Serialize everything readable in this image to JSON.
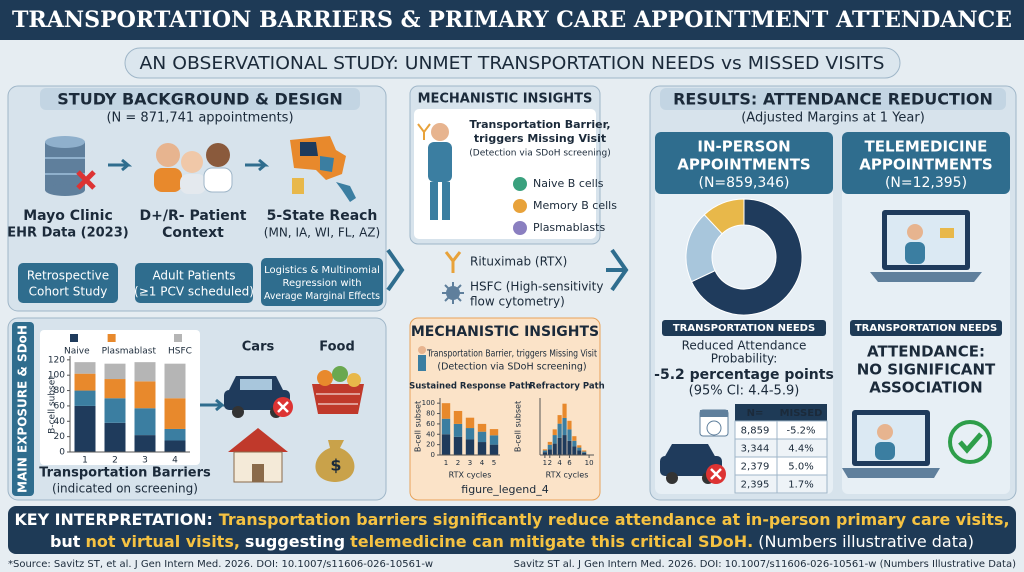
{
  "header": {
    "title": "TRANSPORTATION BARRIERS & PRIMARY CARE APPOINTMENT ATTENDANCE",
    "subtitle": "AN OBSERVATIONAL STUDY: UNMET TRANSPORTATION NEEDS vs MISSED VISITS"
  },
  "background": {
    "title": "STUDY BACKGROUND & DESIGN",
    "n": "(N = 871,741 appointments)",
    "items": [
      {
        "label": [
          "Mayo Clinic",
          "EHR Data (2023)"
        ],
        "box": [
          "Retrospective",
          "Cohort Study"
        ]
      },
      {
        "label": [
          "D+/R- Patient",
          "Context"
        ],
        "box": [
          "Adult Patients",
          "(≥1 PCV scheduled)"
        ]
      },
      {
        "label": [
          "5-State Reach",
          "(MN, IA, WI, FL, AZ)"
        ],
        "box": [
          "Logistics & Multinomial",
          "Regression with",
          "Average Marginal Effects"
        ]
      }
    ]
  },
  "exposure": {
    "title": "MAIN EXPOSURE & SDoH",
    "chart": {
      "type": "bar",
      "stacked": true,
      "ylabel": "B-cell subset",
      "xlabel": "Transportation Barriers",
      "xlabel_note": "(indicated on screening)",
      "categories": [
        "1",
        "2",
        "3",
        "4"
      ],
      "ylim": [
        0,
        125
      ],
      "yticks": [
        0,
        20,
        40,
        60,
        80,
        100,
        120
      ],
      "series": [
        {
          "name": "Naive",
          "color": "#1f3b5c",
          "values": [
            60,
            38,
            22,
            15
          ]
        },
        {
          "color": "#3b7ea1",
          "values": [
            20,
            32,
            35,
            15
          ]
        },
        {
          "name": "Plasmablast",
          "color": "#e8892c",
          "values": [
            22,
            25,
            35,
            40
          ]
        },
        {
          "name": "HSFC",
          "color": "#b5b5b5",
          "values": [
            15,
            20,
            25,
            45
          ]
        }
      ]
    },
    "icons": [
      "Cars",
      "Food"
    ]
  },
  "mechanism_top": {
    "title": "MECHANISTIC INSIGHTS",
    "caption": [
      "Transportation Barrier,",
      "triggers Missing Visit",
      "(Detection via SDoH screening)"
    ],
    "legend": [
      {
        "label": "Naive B cells",
        "color": "#3aa17e"
      },
      {
        "label": "Memory B cells",
        "color": "#e8a23a"
      },
      {
        "label": "Plasmablasts",
        "color": "#8a7fc0"
      }
    ],
    "rtx": "Rituximab (RTX)",
    "hsfc": [
      "HSFC (High-sensitivity",
      "flow cytometry)"
    ]
  },
  "mechanism_bottom": {
    "title": "MECHANISTIC INSIGHTS",
    "caption": [
      "Transportation Barrier, triggers Missing Visit",
      "(Detection via SDoH screening)"
    ],
    "charts": [
      {
        "type": "bar",
        "stacked": true,
        "title": "Sustained Response Path",
        "ylabel": "B-cell subset",
        "xlabel": "RTX cycles",
        "categories": [
          "1",
          "2",
          "3",
          "4",
          "5"
        ],
        "ylim": [
          0,
          110
        ],
        "yticks": [
          0,
          20,
          40,
          60,
          80,
          100
        ],
        "series": [
          {
            "color": "#1f3b5c",
            "values": [
              40,
              35,
              30,
              25,
              20
            ]
          },
          {
            "color": "#3b7ea1",
            "values": [
              30,
              25,
              22,
              20,
              18
            ]
          },
          {
            "color": "#e8892c",
            "values": [
              30,
              25,
              20,
              15,
              12
            ]
          }
        ]
      },
      {
        "type": "bar",
        "stacked": true,
        "title": "Refractory Path",
        "ylabel": "B-cell subset",
        "xlabel": "RTX cycles",
        "x": [
          1,
          2,
          3,
          4,
          5,
          6,
          7,
          8,
          9
        ],
        "xlim": [
          0,
          11
        ],
        "xticks": [
          1,
          2,
          4,
          6,
          10
        ],
        "ylim": [
          0,
          100
        ],
        "series": [
          {
            "color": "#1f3b5c",
            "values": [
              5,
              10,
              20,
              30,
              35,
              25,
              15,
              8,
              4
            ]
          },
          {
            "color": "#3b7ea1",
            "values": [
              3,
              8,
              15,
              25,
              30,
              20,
              10,
              5,
              2
            ]
          },
          {
            "color": "#e8892c",
            "values": [
              2,
              5,
              10,
              15,
              25,
              15,
              8,
              4,
              2
            ]
          }
        ]
      }
    ],
    "figure_label": "figure_legend_4"
  },
  "results": {
    "title": "RESULTS: ATTENDANCE REDUCTION",
    "subtitle": "(Adjusted Margins at 1 Year)",
    "in_person": {
      "title": [
        "IN-PERSON",
        "APPOINTMENTS",
        "(N=859,346)"
      ],
      "donut": {
        "type": "pie",
        "values": [
          68,
          20,
          12
        ],
        "colors": [
          "#1f3b5c",
          "#a8c6dc",
          "#e8b84a"
        ]
      },
      "needs": "TRANSPORTATION NEEDS",
      "effect": [
        "Reduced Attendance",
        "Probability:"
      ],
      "estimate": "-5.2 percentage points",
      "ci": "(95% CI: 4.4-5.9)",
      "table": {
        "header": [
          "N=",
          "MISSED"
        ],
        "rows": [
          [
            "8,859",
            "-5.2%"
          ],
          [
            "3,344",
            "4.4%"
          ],
          [
            "2,379",
            "5.0%"
          ],
          [
            "2,395",
            "1.7%"
          ]
        ]
      }
    },
    "telemedicine": {
      "title": [
        "TELEMEDICINE",
        "APPOINTMENTS",
        "(N=12,395)"
      ],
      "needs": "TRANSPORTATION NEEDS",
      "finding": [
        "ATTENDANCE:",
        "NO SIGNIFICANT",
        "ASSOCIATION"
      ]
    }
  },
  "interpretation": {
    "label": "KEY INTERPRETATION:",
    "line1": "Transportation barriers significantly reduce attendance at in-person primary care visits,",
    "line2": [
      "but",
      "not virtual visits,",
      "suggesting",
      "telemedicine can mitigate this critical SDoH.",
      "(Numbers illustrative data)"
    ]
  },
  "footer": {
    "left": "*Source: Savitz ST, et al. J Gen Intern Med. 2026. DOI: 10.1007/s11606-026-10561-w",
    "right": "Savitz ST al. J Gen Intern Med. 2026. DOI: 10.1007/s11606-026-10561-w (Numbers Illustrative Data)"
  }
}
